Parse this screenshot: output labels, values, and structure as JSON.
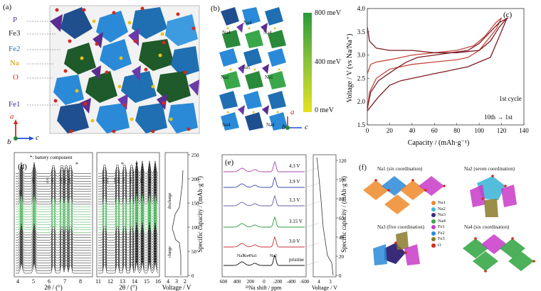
{
  "panel_a": {
    "label": "(a)",
    "atoms": [
      {
        "name": "P",
        "color": "#5b2d90"
      },
      {
        "name": "Fe3",
        "color": "#222222"
      },
      {
        "name": "Fe2",
        "color": "#1f6fb2"
      },
      {
        "name": "Na",
        "color": "#c79a00"
      },
      {
        "name": "O",
        "color": "#d12a1f"
      },
      {
        "name": "Fe1",
        "color": "#3b2d90"
      }
    ],
    "axes": {
      "a": "a",
      "b": "b",
      "c": "c"
    }
  },
  "panel_b": {
    "label": "(b)",
    "sites": [
      "Na4",
      "Na4",
      "Na4",
      "Na1",
      "Na1",
      "Na1",
      "Na4",
      "Na4"
    ],
    "colorbar": {
      "max": "800 meV",
      "mid": "400 meV",
      "min": "0 meV"
    },
    "axes": {
      "b": "b",
      "c": "c",
      "a": "a"
    }
  },
  "panel_c": {
    "label": "(c)",
    "annotation_1": "1st cycle",
    "annotation_2": "10th → 1st",
    "chart_data": {
      "type": "line",
      "xlabel": "Capacity / (mAh·g⁻¹)",
      "ylabel": "Voltage / V (vs Na/Na⁺)",
      "xlim": [
        0,
        140
      ],
      "ylim": [
        1.5,
        4.0
      ],
      "xticks": [
        0,
        20,
        40,
        60,
        80,
        100,
        120,
        140
      ],
      "yticks": [
        1.5,
        2.0,
        2.5,
        3.0,
        3.5,
        4.0
      ],
      "series": [
        {
          "color": "#c8463d",
          "x": [
            0,
            3,
            8,
            20,
            40,
            60,
            80,
            95,
            105,
            115,
            120
          ],
          "y": [
            2.6,
            2.8,
            2.85,
            2.9,
            3.0,
            3.05,
            3.1,
            3.2,
            3.4,
            3.7,
            3.8
          ]
        },
        {
          "color": "#c8463d",
          "x": [
            120,
            115,
            100,
            90,
            80,
            60,
            40,
            20,
            8,
            2,
            0
          ],
          "y": [
            3.8,
            3.55,
            3.1,
            2.95,
            2.9,
            2.85,
            2.8,
            2.7,
            2.5,
            2.2,
            1.8
          ]
        },
        {
          "color": "#7a1c24",
          "x": [
            0,
            2,
            8,
            20,
            40,
            60,
            80,
            100,
            110,
            118,
            125
          ],
          "y": [
            3.6,
            3.3,
            3.15,
            3.1,
            3.1,
            3.05,
            3.05,
            3.1,
            3.3,
            3.6,
            3.8
          ]
        },
        {
          "color": "#7a1c24",
          "x": [
            125,
            118,
            110,
            100,
            90,
            80,
            70,
            60,
            40,
            30,
            20,
            10,
            0
          ],
          "y": [
            3.8,
            3.4,
            2.95,
            2.85,
            2.75,
            2.7,
            2.65,
            2.6,
            2.5,
            2.45,
            2.35,
            2.1,
            1.8
          ]
        },
        {
          "color": "#7a1c24",
          "x": [
            0,
            3,
            10,
            25,
            35,
            45,
            60,
            75,
            90,
            100,
            110,
            118,
            126
          ],
          "y": [
            1.85,
            2.2,
            2.45,
            2.7,
            2.85,
            2.95,
            3.0,
            3.05,
            3.1,
            3.25,
            3.5,
            3.7,
            3.8
          ]
        }
      ]
    }
  },
  "panel_d": {
    "label": "(d)",
    "legend": "*: battery component",
    "xlabel": "2θ / (°)",
    "xticks_left": [
      "4",
      "5",
      "6",
      "7",
      "8"
    ],
    "xticks_right": [
      "11",
      "12",
      "13",
      "14",
      "15",
      "16"
    ],
    "ylabel": "Specific capacity / (mAh·g⁻¹)",
    "yticks": [
      "0",
      "50",
      "100",
      "150",
      "200",
      "250"
    ],
    "voltage_label": "Voltage / V",
    "vticks": [
      "4",
      "3",
      "2"
    ],
    "discharge": "discharge",
    "charge": "charge",
    "peak_labels": [
      "(200)",
      "(201)",
      "(011)",
      "(401)",
      "(111)",
      "(410)",
      "(211)",
      "(501)",
      "(212)",
      "(320)",
      "(602)",
      "(711)",
      "(511)",
      "(611)",
      "(712)"
    ]
  },
  "panel_e": {
    "label": "(e)",
    "states": [
      "4.3 V",
      "3.9 V",
      "3.3 V",
      "3.15 V",
      "3.0 V",
      "pristine"
    ],
    "colors": [
      "#a84aa8",
      "#3a4aa8",
      "#6a5aa8",
      "#2f9a3f",
      "#c8323a",
      "#111111"
    ],
    "peak_labels": [
      "Na3",
      "Na4",
      "Na1",
      "Na2"
    ],
    "xlabel": "²³Na shift / ppm",
    "xticks": [
      "600",
      "400",
      "200",
      "0",
      "-200",
      "-400",
      "-600"
    ],
    "ylabel": "Specific capacity / (mAh·g⁻¹)",
    "yticks": [
      "0",
      "20",
      "40",
      "60",
      "80",
      "100",
      "120"
    ],
    "voltage_label": "Voltage / V",
    "vticks": [
      "4",
      "3"
    ]
  },
  "panel_f": {
    "label": "(f)",
    "titles": [
      "Na1 (six coordination)",
      "Na2 (seven coordination)",
      "Na3 (five coordination)",
      "Na4 (six coordination)"
    ],
    "legend": [
      {
        "name": "Na1",
        "color": "#ef8a2a"
      },
      {
        "name": "Na2",
        "color": "#43b6d8"
      },
      {
        "name": "Na3",
        "color": "#3a2a7a"
      },
      {
        "name": "Na4",
        "color": "#3aa84a"
      },
      {
        "name": "Fe1",
        "color": "#c83ac8"
      },
      {
        "name": "Fe2",
        "color": "#2a8ad8"
      },
      {
        "name": "Fe3",
        "color": "#8a7a2a"
      },
      {
        "name": "O",
        "color": "#d82a1a"
      }
    ]
  }
}
